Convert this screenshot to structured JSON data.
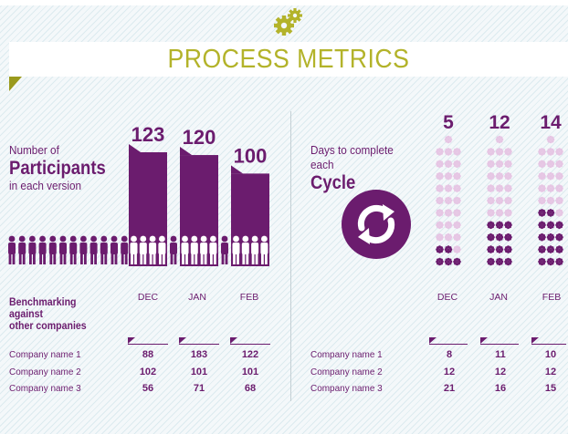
{
  "header": {
    "title": "PROCESS METRICS"
  },
  "icons": {
    "gear": "gears-icon",
    "cycle": "refresh-cycle-icon",
    "person": "person-icon",
    "flower": "flower-icon"
  },
  "colors": {
    "purple": "#6b1c6e",
    "olive": "#b3b32a",
    "light_flower": "#e6c6e4",
    "background": "#f4f8fa"
  },
  "participants": {
    "label_line1": "Number of",
    "label_big": "Participants",
    "label_line3": "in each version"
  },
  "cycle": {
    "label_line1": "Days to complete",
    "label_line2": "each",
    "label_big": "Cycle"
  },
  "benchmark": {
    "label": [
      "Benchmarking",
      "against",
      "other companies"
    ],
    "left_columns": [
      "DEC",
      "JAN",
      "FEB"
    ],
    "right_columns": [
      "DEC",
      "JAN",
      "FEB"
    ],
    "left_rows": [
      {
        "name": "Company name 1",
        "values": [
          88,
          183,
          122
        ]
      },
      {
        "name": "Company name 2",
        "values": [
          102,
          101,
          101
        ]
      },
      {
        "name": "Company name 3",
        "values": [
          56,
          71,
          68
        ]
      }
    ],
    "right_rows": [
      {
        "name": "Company name 1",
        "values": [
          8,
          11,
          10
        ]
      },
      {
        "name": "Company name 2",
        "values": [
          12,
          12,
          12
        ]
      },
      {
        "name": "Company name 3",
        "values": [
          21,
          16,
          15
        ]
      }
    ]
  },
  "chart_data": [
    {
      "type": "bar",
      "title": "Number of Participants in each version",
      "categories": [
        "DEC",
        "JAN",
        "FEB"
      ],
      "values": [
        123,
        120,
        100
      ],
      "data_labels": [
        "123",
        "120",
        "100"
      ],
      "ylim": [
        0,
        130
      ]
    },
    {
      "type": "pictogram",
      "title": "Days to complete each Cycle",
      "categories": [
        "DEC",
        "JAN",
        "FEB"
      ],
      "values": [
        5,
        12,
        14
      ],
      "data_labels": [
        "5",
        "12",
        "14"
      ],
      "max": 28
    }
  ]
}
